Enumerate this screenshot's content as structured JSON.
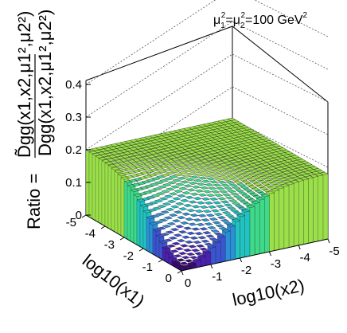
{
  "chart_data": {
    "type": "surface-lego",
    "annotation": {
      "mu1": "μ",
      "sub1": "1",
      "sup1": "2",
      "mu2": "=μ",
      "sub2": "2",
      "sup2": "2",
      "value": "=100 GeV",
      "supGeV": "2"
    },
    "zaxis": {
      "ratio_prefix": "Ratio =",
      "numerator": "D̃gg(x1,x2,μ1²,μ2²)",
      "denominator": "Dgg(x1,x2,μ1²,μ2²)",
      "ticks": [
        "0",
        "0.1",
        "0.2",
        "0.3",
        "0.4"
      ],
      "zlim": [
        0,
        0.42
      ]
    },
    "xaxis": {
      "title": "log10(x1)",
      "ticks": [
        "-5",
        "-4",
        "-3",
        "-2",
        "-1",
        "0"
      ],
      "xlim": [
        -5,
        0
      ]
    },
    "yaxis": {
      "title": "log10(x2)",
      "ticks": [
        "0",
        "-1",
        "-2",
        "-3",
        "-4",
        "-5"
      ],
      "ylim": [
        -5,
        0
      ]
    },
    "surface_description_values": {
      "plateau": 0.2,
      "valley_minimum": 0.0,
      "valley_axis": "log10(x1) ≈ log10(x2) near 0",
      "note": "ratio ≈0.2 over most of the grid, dipping toward 0 where both x1 and x2 approach 1"
    },
    "palette": [
      "#3b0a78",
      "#4a22b0",
      "#3b55d0",
      "#2a8fd6",
      "#22c2c0",
      "#3fd98a",
      "#9be04a",
      "#e8e23a"
    ]
  }
}
